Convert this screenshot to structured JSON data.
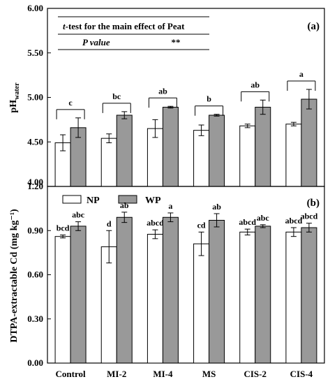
{
  "chart_data": [
    {
      "panel": "(a)",
      "type": "bar",
      "ylabel_main": "pH",
      "ylabel_sub": "water",
      "ylim": [
        4.0,
        6.0
      ],
      "yticks": [
        "4.00",
        "4.50",
        "5.00",
        "5.50",
        "6.00"
      ],
      "categories": [
        "Control",
        "MI-2",
        "MI-4",
        "MS",
        "CIS-2",
        "CIS-4"
      ],
      "series": [
        {
          "name": "NP",
          "color": "#ffffff",
          "values": [
            4.49,
            4.54,
            4.65,
            4.63,
            4.68,
            4.7
          ],
          "errors": [
            0.09,
            0.05,
            0.1,
            0.06,
            0.02,
            0.02
          ]
        },
        {
          "name": "WP",
          "color": "#999999",
          "values": [
            4.66,
            4.8,
            4.89,
            4.8,
            4.89,
            4.98
          ],
          "errors": [
            0.11,
            0.04,
            0.01,
            0.01,
            0.08,
            0.11
          ]
        }
      ],
      "group_letters": [
        "c",
        "bc",
        "ab",
        "b",
        "ab",
        "a"
      ],
      "annotation": {
        "row1_prefix": "t",
        "row1_rest": "-test for the main effect of Peat",
        "row2_label": "P value",
        "row2_value": "**"
      }
    },
    {
      "panel": "(b)",
      "type": "bar",
      "ylabel": "DTPA-extractable Cd (mg kg⁻¹)",
      "ylim": [
        0.0,
        1.2
      ],
      "yticks": [
        "0.00",
        "0.30",
        "0.60",
        "0.90",
        "1.20"
      ],
      "categories": [
        "Control",
        "MI-2",
        "MI-4",
        "MS",
        "CIS-2",
        "CIS-4"
      ],
      "series": [
        {
          "name": "NP",
          "color": "#ffffff",
          "values": [
            0.86,
            0.79,
            0.875,
            0.81,
            0.89,
            0.89
          ],
          "errors": [
            0.01,
            0.11,
            0.03,
            0.08,
            0.02,
            0.03
          ],
          "labels": [
            "bcd",
            "d",
            "abcd",
            "cd",
            "abcd",
            "abcd"
          ]
        },
        {
          "name": "WP",
          "color": "#999999",
          "values": [
            0.93,
            0.99,
            0.99,
            0.97,
            0.93,
            0.92
          ],
          "errors": [
            0.03,
            0.035,
            0.03,
            0.045,
            0.01,
            0.03
          ],
          "labels": [
            "abc",
            "ab",
            "a",
            "ab",
            "abc",
            "abcd"
          ]
        }
      ],
      "legend": [
        "NP",
        "WP"
      ]
    }
  ]
}
